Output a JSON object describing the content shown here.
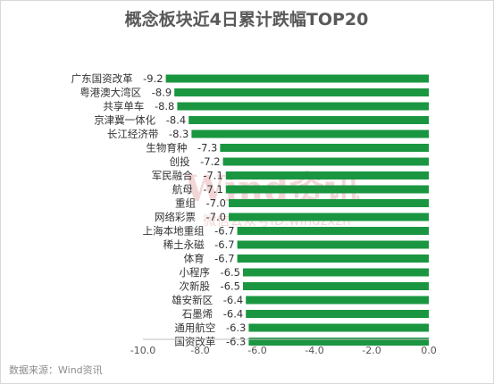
{
  "chart_data": {
    "type": "bar",
    "orientation": "horizontal",
    "title": "概念板块近4日累计跌幅TOP20",
    "categories": [
      "广东国资改革",
      "粤港澳大湾区",
      "共享单车",
      "京津冀一体化",
      "长江经济带",
      "生物育种",
      "创投",
      "军民融合",
      "航母",
      "重组",
      "网络彩票",
      "上海本地重组",
      "稀土永磁",
      "体育",
      "小程序",
      "次新股",
      "雄安新区",
      "石墨烯",
      "通用航空",
      "国资改革"
    ],
    "values": [
      -9.2,
      -8.9,
      -8.8,
      -8.4,
      -8.3,
      -7.3,
      -7.2,
      -7.1,
      -7.1,
      -7.0,
      -7.0,
      -6.7,
      -6.7,
      -6.7,
      -6.5,
      -6.5,
      -6.4,
      -6.4,
      -6.3,
      -6.3
    ],
    "value_labels": [
      "-9.2",
      "-8.9",
      "-8.8",
      "-8.4",
      "-8.3",
      "-7.3",
      "-7.2",
      "-7.1",
      "-7.1",
      "-7.0",
      "-7.0",
      "-6.7",
      "-6.7",
      "-6.7",
      "-6.5",
      "-6.5",
      "-6.4",
      "-6.4",
      "-6.3",
      "-6.3"
    ],
    "xlim": [
      -10.0,
      0.0
    ],
    "xticks": [
      "-10.0",
      "-8.0",
      "-6.0",
      "-4.0",
      "-2.0",
      "0.0"
    ],
    "xtick_values": [
      -10,
      -8,
      -6,
      -4,
      -2,
      0
    ],
    "bar_color": "#1a9641",
    "grid": false
  },
  "source": "数据来源：Wind资讯",
  "watermark": {
    "main": "Wind资讯",
    "sub": "微信公众号ID:windzxzh"
  }
}
